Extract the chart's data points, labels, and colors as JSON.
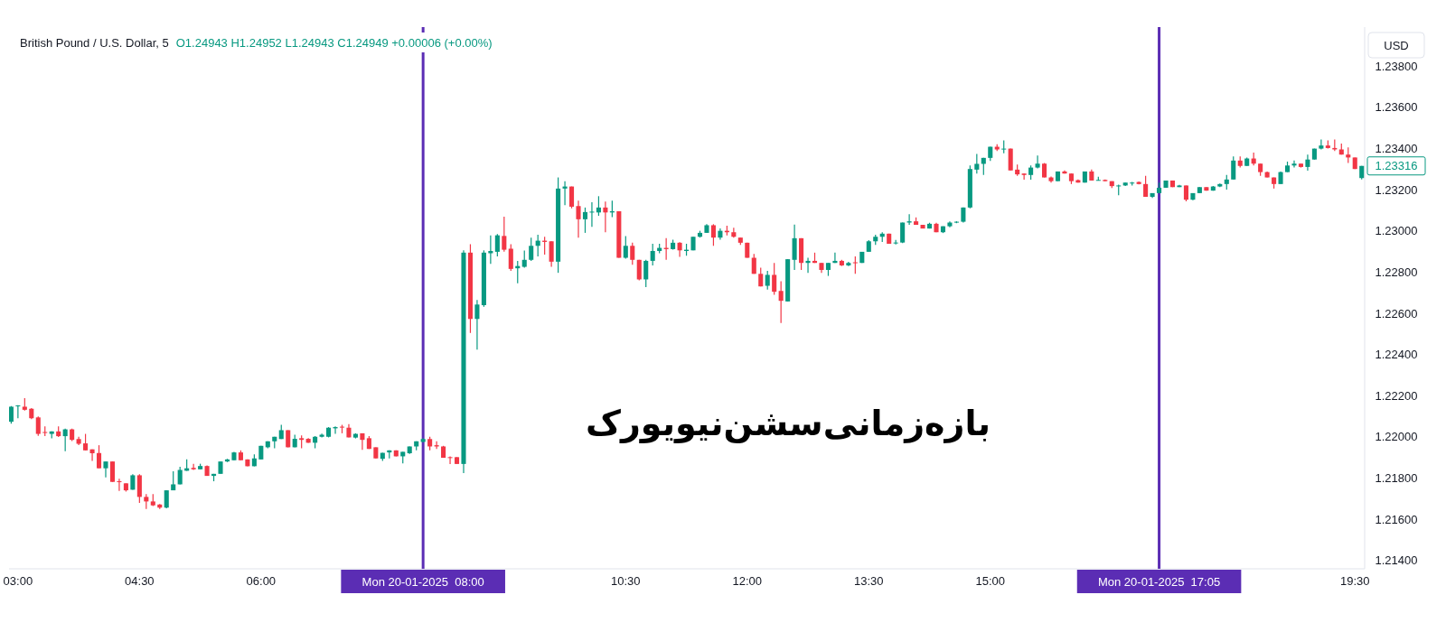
{
  "chart_data": {
    "type": "candlestick",
    "title": "British Pound / U.S. Dollar, 5",
    "annotations": [
      "O1.24943 H1.24952 L1.24943 C1.24949 +0.00006 (+0.00%)",
      "USD",
      "بازه‌زمانی‌سشن‌نیویورک",
      "1.23316"
    ],
    "x": [
      2.9167,
      3,
      3.0833,
      3.1667,
      3.25,
      3.3333,
      3.4167,
      3.5,
      3.5833,
      3.6667,
      3.75,
      3.8333,
      3.9167,
      4,
      4.0833,
      4.1667,
      4.25,
      4.3333,
      4.4167,
      4.5,
      4.5833,
      4.6667,
      4.75,
      4.8333,
      4.9167,
      5,
      5.0833,
      5.1667,
      5.25,
      5.3333,
      5.4167,
      5.5,
      5.5833,
      5.6667,
      5.75,
      5.8333,
      5.9167,
      6,
      6.0833,
      6.1667,
      6.25,
      6.3333,
      6.4167,
      6.5,
      6.5833,
      6.6667,
      6.75,
      6.8333,
      6.9167,
      7,
      7.0833,
      7.1667,
      7.25,
      7.3333,
      7.4167,
      7.5,
      7.5833,
      7.6667,
      7.75,
      7.8333,
      7.9167,
      8,
      8.0833,
      8.1667,
      8.25,
      8.3333,
      8.4167,
      8.5,
      8.5833,
      8.6667,
      8.75,
      8.8333,
      8.9167,
      9,
      9.0833,
      9.1667,
      9.25,
      9.3333,
      9.4167,
      9.5,
      9.5833,
      9.6667,
      9.75,
      9.8333,
      9.9167,
      10,
      10.0833,
      10.1667,
      10.25,
      10.3333,
      10.4167,
      10.5,
      10.5833,
      10.6667,
      10.75,
      10.8333,
      10.9167,
      11,
      11.0833,
      11.1667,
      11.25,
      11.3333,
      11.4167,
      11.5,
      11.5833,
      11.6667,
      11.75,
      11.8333,
      11.9167,
      12,
      12.0833,
      12.1667,
      12.25,
      12.3333,
      12.4167,
      12.5,
      12.5833,
      12.6667,
      12.75,
      12.8333,
      12.9167,
      13,
      13.0833,
      13.1667,
      13.25,
      13.3333,
      13.4167,
      13.5,
      13.5833,
      13.6667,
      13.75,
      13.8333,
      13.9167,
      14,
      14.0833,
      14.1667,
      14.25,
      14.3333,
      14.4167,
      14.5,
      14.5833,
      14.6667,
      14.75,
      14.8333,
      14.9167,
      15,
      15.0833,
      15.1667,
      15.25,
      15.3333,
      15.4167,
      15.5,
      15.5833,
      15.6667,
      15.75,
      15.8333,
      15.9167,
      16,
      16.0833,
      16.1667,
      16.25,
      16.3333,
      16.4167,
      16.5,
      16.5833,
      16.6667,
      16.75,
      16.8333,
      16.9167,
      17,
      17.0833,
      17.1667,
      17.25,
      17.3333,
      17.4167,
      17.5,
      17.5833,
      17.6667,
      17.75,
      17.8333,
      17.9167,
      18,
      18.0833,
      18.1667,
      18.25,
      18.3333,
      18.4167,
      18.5,
      18.5833,
      18.6667,
      18.75,
      18.8333,
      18.9167,
      19,
      19.0833,
      19.1667,
      19.25,
      19.3333,
      19.4167,
      19.5,
      19.5833
    ],
    "ohlc": [
      [
        1.22074,
        1.2215,
        1.22065,
        1.22147
      ],
      [
        1.2215,
        1.22154,
        1.22091,
        1.22153
      ],
      [
        1.22147,
        1.22188,
        1.22128,
        1.22132
      ],
      [
        1.22137,
        1.2214,
        1.22086,
        1.22091
      ],
      [
        1.22095,
        1.221,
        1.22005,
        1.22015
      ],
      [
        1.22024,
        1.22052,
        1.22004,
        1.2202
      ],
      [
        1.22015,
        1.22027,
        1.21993,
        1.22027
      ],
      [
        1.22027,
        1.22052,
        1.22,
        1.22004
      ],
      [
        1.22004,
        1.2204,
        1.21931,
        1.22037
      ],
      [
        1.22037,
        1.2204,
        1.2198,
        1.21986
      ],
      [
        1.2199,
        1.22001,
        1.2196,
        1.21967
      ],
      [
        1.21969,
        1.22015,
        1.21935,
        1.21935
      ],
      [
        1.2194,
        1.2194,
        1.21884,
        1.21921
      ],
      [
        1.21922,
        1.2196,
        1.21848,
        1.21848
      ],
      [
        1.21848,
        1.21881,
        1.21804,
        1.21881
      ],
      [
        1.21881,
        1.21881,
        1.21782,
        1.21782
      ],
      [
        1.21785,
        1.21797,
        1.21738,
        1.21782
      ],
      [
        1.21775,
        1.21775,
        1.21735,
        1.21741
      ],
      [
        1.21744,
        1.21819,
        1.21744,
        1.21814
      ],
      [
        1.21814,
        1.21819,
        1.2168,
        1.21709
      ],
      [
        1.21709,
        1.21723,
        1.2165,
        1.21687
      ],
      [
        1.21687,
        1.21723,
        1.21665,
        1.21668
      ],
      [
        1.21672,
        1.21675,
        1.2165,
        1.21657
      ],
      [
        1.21657,
        1.21741,
        1.21654,
        1.21741
      ],
      [
        1.21741,
        1.21833,
        1.21741,
        1.2177
      ],
      [
        1.2177,
        1.21855,
        1.2177,
        1.2184
      ],
      [
        1.21836,
        1.21891,
        1.21836,
        1.21848
      ],
      [
        1.2185,
        1.2187,
        1.2184,
        1.21843
      ],
      [
        1.21843,
        1.2187,
        1.21843,
        1.21859
      ],
      [
        1.21859,
        1.21862,
        1.21811,
        1.21811
      ],
      [
        1.21811,
        1.21821,
        1.21785,
        1.21821
      ],
      [
        1.21821,
        1.21881,
        1.21821,
        1.21881
      ],
      [
        1.21881,
        1.21894,
        1.21878,
        1.21891
      ],
      [
        1.21887,
        1.21928,
        1.21887,
        1.21925
      ],
      [
        1.21925,
        1.21935,
        1.21887,
        1.21887
      ],
      [
        1.21891,
        1.21891,
        1.21858,
        1.21858
      ],
      [
        1.21858,
        1.21916,
        1.21858,
        1.21896
      ],
      [
        1.21891,
        1.21957,
        1.21891,
        1.21957
      ],
      [
        1.2195,
        1.21979,
        1.21945,
        1.21979
      ],
      [
        1.21979,
        1.22001,
        1.21945,
        1.22001
      ],
      [
        1.2199,
        1.22059,
        1.2199,
        1.22033
      ],
      [
        1.22033,
        1.22033,
        1.2195,
        1.2195
      ],
      [
        1.2195,
        1.22011,
        1.2195,
        1.21991
      ],
      [
        1.21994,
        1.22008,
        1.21945,
        1.21986
      ],
      [
        1.21991,
        1.21994,
        1.21972,
        1.21972
      ],
      [
        1.21972,
        1.22004,
        1.21945,
        1.22001
      ],
      [
        1.22001,
        1.22016,
        1.21998,
        1.22011
      ],
      [
        1.22001,
        1.22048,
        1.21998,
        1.22045
      ],
      [
        1.22042,
        1.22051,
        1.22015,
        1.22048
      ],
      [
        1.2205,
        1.22059,
        1.22018,
        1.22046
      ],
      [
        1.22045,
        1.22062,
        1.21998,
        1.21998
      ],
      [
        1.21997,
        1.22018,
        1.21993,
        1.22015
      ],
      [
        1.22018,
        1.22018,
        1.21938,
        1.21986
      ],
      [
        1.21994,
        1.22004,
        1.21942,
        1.21942
      ],
      [
        1.2195,
        1.2195,
        1.21896,
        1.21896
      ],
      [
        1.21894,
        1.21923,
        1.21884,
        1.21923
      ],
      [
        1.21925,
        1.21935,
        1.21896,
        1.21935
      ],
      [
        1.21935,
        1.21935,
        1.21906,
        1.21906
      ],
      [
        1.21906,
        1.21928,
        1.21872,
        1.21928
      ],
      [
        1.21921,
        1.21954,
        1.21918,
        1.21954
      ],
      [
        1.21954,
        1.21979,
        1.21935,
        1.21979
      ],
      [
        1.21976,
        1.21994,
        1.21974,
        1.2199
      ],
      [
        1.2199,
        1.22001,
        1.21935,
        1.21954
      ],
      [
        1.2196,
        1.21979,
        1.21942,
        1.21954
      ],
      [
        1.21954,
        1.21957,
        1.21899,
        1.21899
      ],
      [
        1.21902,
        1.21906,
        1.21869,
        1.21899
      ],
      [
        1.21902,
        1.21902,
        1.21869,
        1.21869
      ],
      [
        1.21869,
        1.22906,
        1.21825,
        1.22895
      ],
      [
        1.22895,
        1.22936,
        1.22505,
        1.22573
      ],
      [
        1.22573,
        1.22665,
        1.22424,
        1.22643
      ],
      [
        1.2264,
        1.22906,
        1.22632,
        1.22895
      ],
      [
        1.22892,
        1.22979,
        1.22841,
        1.22903
      ],
      [
        1.22899,
        1.22985,
        1.22877,
        1.22979
      ],
      [
        1.22976,
        1.2307,
        1.229,
        1.22909
      ],
      [
        1.22914,
        1.22936,
        1.22807,
        1.22816
      ],
      [
        1.22819,
        1.22855,
        1.22746,
        1.2283
      ],
      [
        1.22826,
        1.22905,
        1.22822,
        1.2286
      ],
      [
        1.2286,
        1.22968,
        1.22855,
        1.22928
      ],
      [
        1.22928,
        1.22982,
        1.22877,
        1.22953
      ],
      [
        1.22953,
        1.22972,
        1.22885,
        1.22947
      ],
      [
        1.2295,
        1.2295,
        1.22826,
        1.22851
      ],
      [
        1.22851,
        1.2326,
        1.22797,
        1.23206
      ],
      [
        1.23206,
        1.23242,
        1.23125,
        1.23216
      ],
      [
        1.23216,
        1.23216,
        1.2311,
        1.23118
      ],
      [
        1.23121,
        1.23147,
        1.22968,
        1.23057
      ],
      [
        1.23057,
        1.23114,
        1.22991,
        1.23092
      ],
      [
        1.2309,
        1.2314,
        1.2302,
        1.23094
      ],
      [
        1.2309,
        1.23169,
        1.23074,
        1.23114
      ],
      [
        1.23114,
        1.23143,
        1.22994,
        1.2309
      ],
      [
        1.2309,
        1.23147,
        1.23067,
        1.23096
      ],
      [
        1.23096,
        1.23096,
        1.2287,
        1.2287
      ],
      [
        1.2287,
        1.22975,
        1.22866,
        1.22928
      ],
      [
        1.22928,
        1.22943,
        1.22836,
        1.2286
      ],
      [
        1.2286,
        1.2286,
        1.2276,
        1.22765
      ],
      [
        1.22765,
        1.2286,
        1.22728,
        1.22855
      ],
      [
        1.22855,
        1.22938,
        1.22833,
        1.22903
      ],
      [
        1.22903,
        1.22938,
        1.22892,
        1.22918
      ],
      [
        1.22918,
        1.22965,
        1.2286,
        1.22912
      ],
      [
        1.22912,
        1.22958,
        1.22909,
        1.22943
      ],
      [
        1.22943,
        1.22946,
        1.22874,
        1.22906
      ],
      [
        1.22903,
        1.22938,
        1.2288,
        1.22909
      ],
      [
        1.22906,
        1.22972,
        1.22906,
        1.22972
      ],
      [
        1.22972,
        1.23001,
        1.22968,
        1.22991
      ],
      [
        1.22991,
        1.23033,
        1.22991,
        1.23028
      ],
      [
        1.23028,
        1.23033,
        1.22928,
        1.22968
      ],
      [
        1.22968,
        1.23012,
        1.22958,
        1.23001
      ],
      [
        1.23001,
        1.23026,
        1.22979,
        1.22994
      ],
      [
        1.22994,
        1.23016,
        1.22968,
        1.22972
      ],
      [
        1.22968,
        1.22968,
        1.22933,
        1.22943
      ],
      [
        1.22943,
        1.22943,
        1.2287,
        1.2287
      ],
      [
        1.2287,
        1.22889,
        1.22792,
        1.22792
      ],
      [
        1.22792,
        1.22822,
        1.22731,
        1.22731
      ],
      [
        1.22734,
        1.22807,
        1.22716,
        1.22787
      ],
      [
        1.22787,
        1.22845,
        1.2269,
        1.22705
      ],
      [
        1.22709,
        1.22756,
        1.22553,
        1.22661
      ],
      [
        1.22658,
        1.22863,
        1.22658,
        1.22863
      ],
      [
        1.2286,
        1.23031,
        1.22811,
        1.22965
      ],
      [
        1.22965,
        1.22965,
        1.22811,
        1.22845
      ],
      [
        1.22845,
        1.2287,
        1.22797,
        1.22855
      ],
      [
        1.22855,
        1.22895,
        1.22845,
        1.22845
      ],
      [
        1.22845,
        1.22845,
        1.22797,
        1.22811
      ],
      [
        1.22811,
        1.22845,
        1.22782,
        1.22845
      ],
      [
        1.22845,
        1.22895,
        1.22845,
        1.22855
      ],
      [
        1.22855,
        1.2286,
        1.2283,
        1.22833
      ],
      [
        1.22833,
        1.2285,
        1.2283,
        1.22845
      ],
      [
        1.22848,
        1.22877,
        1.22792,
        1.22845
      ],
      [
        1.22845,
        1.22899,
        1.22845,
        1.22899
      ],
      [
        1.22899,
        1.22955,
        1.22899,
        1.2295
      ],
      [
        1.2295,
        1.22982,
        1.22933,
        1.22972
      ],
      [
        1.22972,
        1.22994,
        1.22947,
        1.22987
      ],
      [
        1.22987,
        1.22987,
        1.22938,
        1.22938
      ],
      [
        1.22941,
        1.22957,
        1.22935,
        1.22944
      ],
      [
        1.22944,
        1.23041,
        1.22941,
        1.23041
      ],
      [
        1.23041,
        1.23082,
        1.2303,
        1.23047
      ],
      [
        1.23047,
        1.23066,
        1.2303,
        1.2303
      ],
      [
        1.2303,
        1.2303,
        1.23012,
        1.23012
      ],
      [
        1.23012,
        1.2304,
        1.23012,
        1.23035
      ],
      [
        1.23035,
        1.2304,
        1.22994,
        1.22994
      ],
      [
        1.22994,
        1.23023,
        1.2299,
        1.23023
      ],
      [
        1.23023,
        1.23047,
        1.23018,
        1.23041
      ],
      [
        1.23041,
        1.23047,
        1.23038,
        1.23045
      ],
      [
        1.23045,
        1.23114,
        1.23041,
        1.23114
      ],
      [
        1.23114,
        1.23318,
        1.2311,
        1.23301
      ],
      [
        1.23298,
        1.23374,
        1.23279,
        1.23326
      ],
      [
        1.23326,
        1.23355,
        1.23272,
        1.23355
      ],
      [
        1.23355,
        1.23409,
        1.2334,
        1.23409
      ],
      [
        1.23409,
        1.23421,
        1.23388,
        1.23396
      ],
      [
        1.23396,
        1.2344,
        1.23377,
        1.234
      ],
      [
        1.234,
        1.234,
        1.23294,
        1.23294
      ],
      [
        1.23298,
        1.23323,
        1.23268,
        1.23275
      ],
      [
        1.23279,
        1.23279,
        1.23249,
        1.23272
      ],
      [
        1.23272,
        1.23318,
        1.23249,
        1.23308
      ],
      [
        1.23308,
        1.23366,
        1.23304,
        1.23327
      ],
      [
        1.23327,
        1.2333,
        1.2326,
        1.2326
      ],
      [
        1.2326,
        1.23265,
        1.23235,
        1.23242
      ],
      [
        1.23242,
        1.23289,
        1.23242,
        1.23289
      ],
      [
        1.23289,
        1.23294,
        1.23279,
        1.23279
      ],
      [
        1.23279,
        1.23279,
        1.23228,
        1.23242
      ],
      [
        1.23247,
        1.2325,
        1.23235,
        1.23235
      ],
      [
        1.23235,
        1.23289,
        1.23235,
        1.23289
      ],
      [
        1.23289,
        1.23298,
        1.23245,
        1.23245
      ],
      [
        1.23245,
        1.23264,
        1.23245,
        1.23248
      ],
      [
        1.23248,
        1.2325,
        1.23242,
        1.23242
      ],
      [
        1.23242,
        1.23242,
        1.23209,
        1.23218
      ],
      [
        1.23218,
        1.23225,
        1.23174,
        1.23221
      ],
      [
        1.23221,
        1.23235,
        1.23218,
        1.23235
      ],
      [
        1.23231,
        1.23238,
        1.23221,
        1.23235
      ],
      [
        1.23238,
        1.2324,
        1.23226,
        1.23228
      ],
      [
        1.23228,
        1.23268,
        1.23166,
        1.23166
      ],
      [
        1.23166,
        1.23184,
        1.2316,
        1.23184
      ],
      [
        1.23184,
        1.23235,
        1.23184,
        1.2321
      ],
      [
        1.2321,
        1.23245,
        1.2321,
        1.23245
      ],
      [
        1.23245,
        1.23245,
        1.23213,
        1.23213
      ],
      [
        1.23213,
        1.23224,
        1.23213,
        1.23221
      ],
      [
        1.23221,
        1.23221,
        1.23144,
        1.23152
      ],
      [
        1.23152,
        1.23184,
        1.2315,
        1.23184
      ],
      [
        1.23184,
        1.23213,
        1.23184,
        1.23213
      ],
      [
        1.23213,
        1.23213,
        1.23196,
        1.23196
      ],
      [
        1.23196,
        1.23218,
        1.23196,
        1.23216
      ],
      [
        1.23216,
        1.23231,
        1.23213,
        1.23228
      ],
      [
        1.23228,
        1.23272,
        1.23201,
        1.2325
      ],
      [
        1.2325,
        1.23362,
        1.2325,
        1.23342
      ],
      [
        1.23342,
        1.23362,
        1.23308,
        1.23316
      ],
      [
        1.23316,
        1.23357,
        1.23316,
        1.23352
      ],
      [
        1.23352,
        1.23381,
        1.23318,
        1.23327
      ],
      [
        1.23327,
        1.23327,
        1.23268,
        1.23286
      ],
      [
        1.23286,
        1.23289,
        1.2326,
        1.2326
      ],
      [
        1.2326,
        1.2326,
        1.23206,
        1.23228
      ],
      [
        1.23228,
        1.23289,
        1.23228,
        1.23286
      ],
      [
        1.23286,
        1.23337,
        1.23286,
        1.23318
      ],
      [
        1.23318,
        1.23342,
        1.23308,
        1.23327
      ],
      [
        1.23327,
        1.23327,
        1.23308,
        1.23311
      ],
      [
        1.23311,
        1.23371,
        1.23293,
        1.23347
      ],
      [
        1.23347,
        1.234,
        1.23347,
        1.234
      ],
      [
        1.234,
        1.23444,
        1.23396,
        1.23415
      ],
      [
        1.23415,
        1.2344,
        1.234,
        1.23403
      ],
      [
        1.23403,
        1.23444,
        1.23388,
        1.23396
      ],
      [
        1.23396,
        1.23425,
        1.23371,
        1.23371
      ],
      [
        1.23371,
        1.23406,
        1.2333,
        1.23357
      ],
      [
        1.23357,
        1.23357,
        1.23301,
        1.23301
      ],
      [
        1.23257,
        1.23316,
        1.2325,
        1.23316
      ]
    ],
    "xlim": [
      2.89,
      19.62
    ],
    "ylim": [
      1.2136,
      1.2399
    ],
    "xticks": [
      {
        "value": 3,
        "label": "03:00"
      },
      {
        "value": 4.5,
        "label": "04:30"
      },
      {
        "value": 6,
        "label": "06:00"
      },
      {
        "value": 10.5,
        "label": "10:30"
      },
      {
        "value": 12,
        "label": "12:00"
      },
      {
        "value": 13.5,
        "label": "13:30"
      },
      {
        "value": 15,
        "label": "15:00"
      },
      {
        "value": 19.5,
        "label": "19:30"
      }
    ],
    "yticks": [
      {
        "value": 1.214,
        "label": "1.21400"
      },
      {
        "value": 1.216,
        "label": "1.21600"
      },
      {
        "value": 1.218,
        "label": "1.21800"
      },
      {
        "value": 1.22,
        "label": "1.22000"
      },
      {
        "value": 1.222,
        "label": "1.22200"
      },
      {
        "value": 1.224,
        "label": "1.22400"
      },
      {
        "value": 1.226,
        "label": "1.22600"
      },
      {
        "value": 1.228,
        "label": "1.22800"
      },
      {
        "value": 1.23,
        "label": "1.23000"
      },
      {
        "value": 1.232,
        "label": "1.23200"
      },
      {
        "value": 1.234,
        "label": "1.23400"
      },
      {
        "value": 1.236,
        "label": "1.23600"
      },
      {
        "value": 1.238,
        "label": "1.23800"
      }
    ],
    "ref_lines": [
      {
        "axis": "x",
        "value": 8,
        "label": "Mon 20-01-2025  08:00",
        "color": "#5b2db4"
      },
      {
        "axis": "x",
        "value": 17.0833,
        "label": "Mon 20-01-2025  17:05",
        "color": "#5b2db4"
      }
    ]
  }
}
